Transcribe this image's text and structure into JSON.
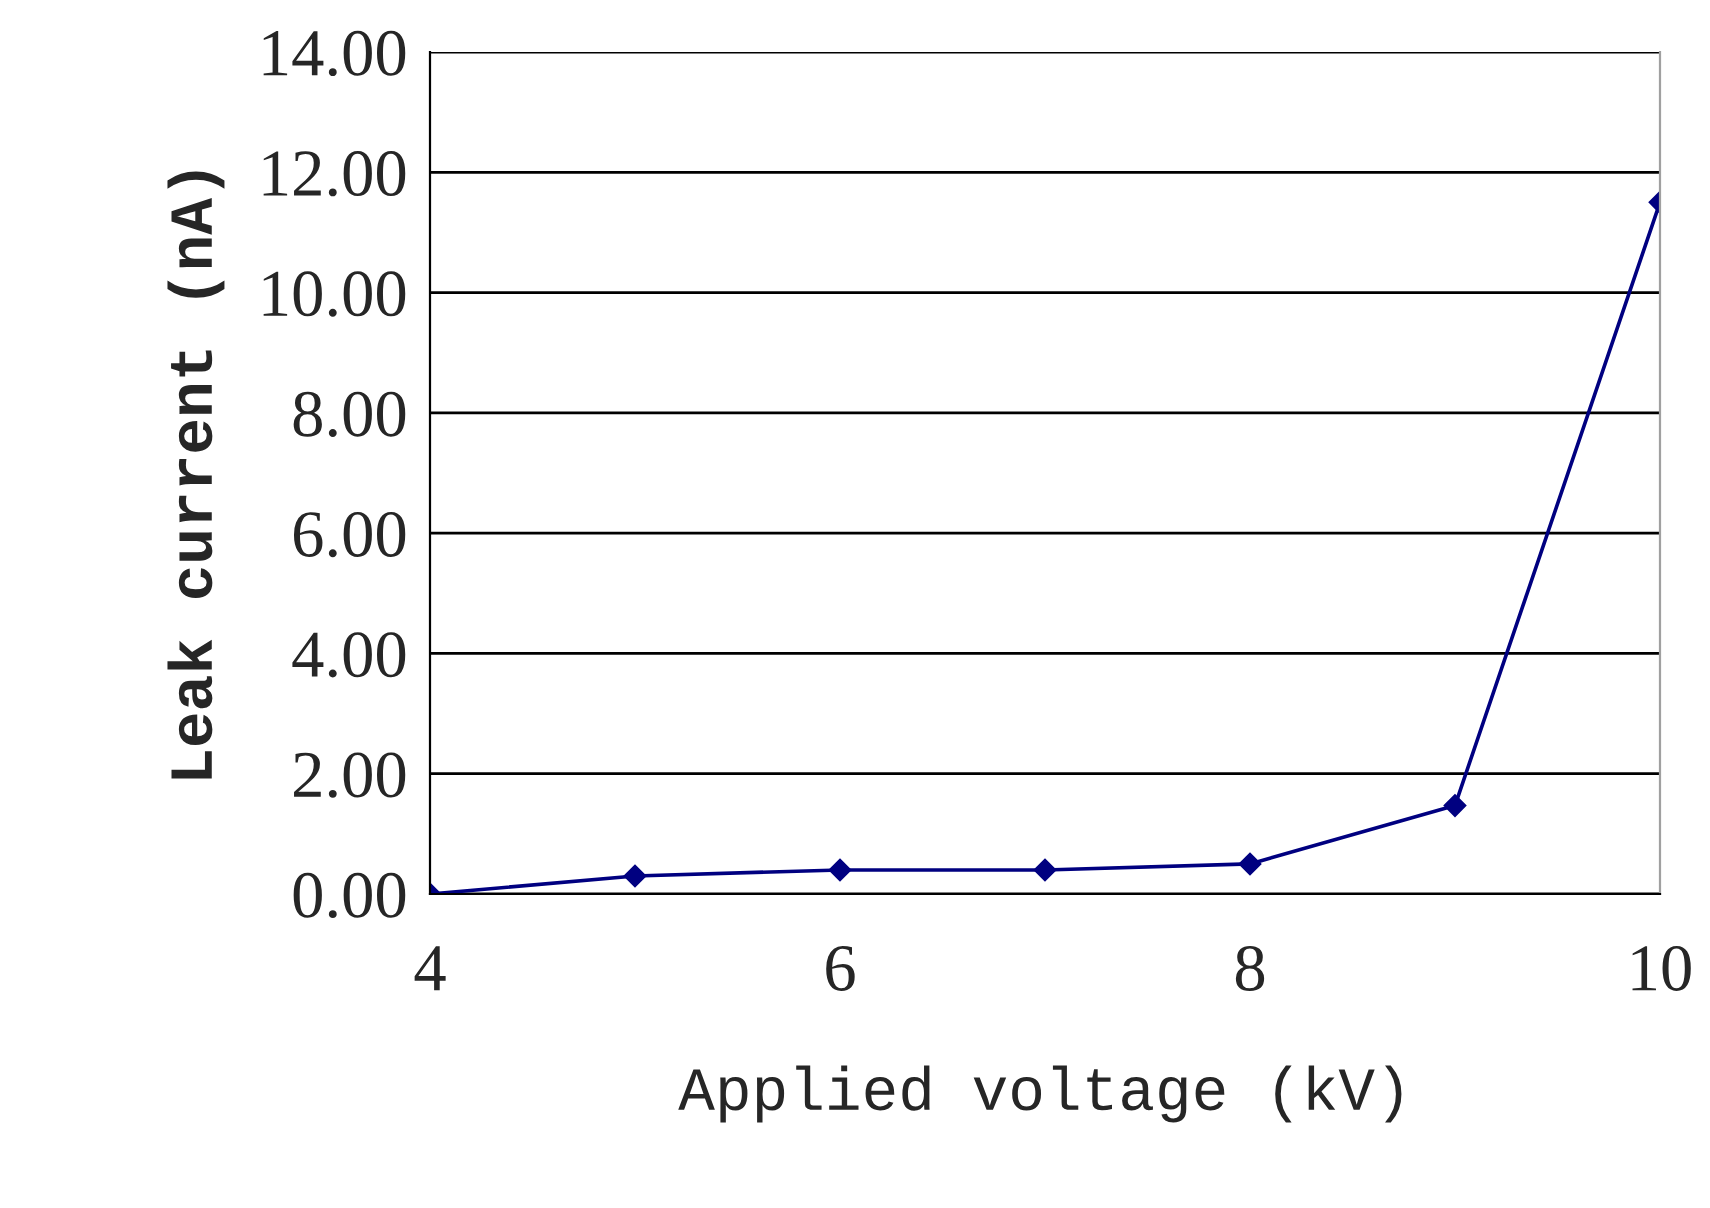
{
  "chart_data": {
    "type": "line",
    "xlabel": "Applied voltage (kV)",
    "ylabel": "Leak current (nA)",
    "x": [
      4,
      5,
      6,
      7,
      8,
      9,
      10
    ],
    "series": [
      {
        "color": "#000080",
        "values": [
          0.0,
          0.3,
          0.4,
          0.4,
          0.5,
          1.47,
          11.5
        ]
      }
    ],
    "xlim": [
      4,
      10
    ],
    "xticks": [
      4,
      6,
      8,
      10
    ],
    "ylim": [
      0,
      14
    ],
    "yticks": [
      {
        "value": 0,
        "label": "0.00"
      },
      {
        "value": 2,
        "label": "2.00"
      },
      {
        "value": 4,
        "label": "4.00"
      },
      {
        "value": 6,
        "label": "6.00"
      },
      {
        "value": 8,
        "label": "8.00"
      },
      {
        "value": 10,
        "label": "10.00"
      },
      {
        "value": 12,
        "label": "12.00"
      },
      {
        "value": 14,
        "label": "14.00"
      }
    ],
    "grid": "y",
    "marker": "diamond",
    "line_style": "solid"
  }
}
